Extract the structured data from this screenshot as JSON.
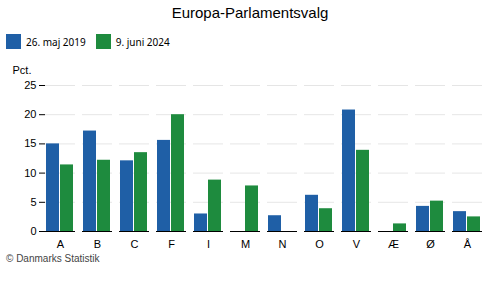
{
  "chart_data": {
    "type": "bar",
    "title": "Europa-Parlamentsvalg",
    "caption": "© Danmarks Statistik",
    "ylabel": "Pct.",
    "categories": [
      "A",
      "B",
      "C",
      "F",
      "I",
      "M",
      "N",
      "O",
      "V",
      "Æ",
      "Ø",
      "Å"
    ],
    "series": [
      {
        "name": "26. maj 2019",
        "color": "#1F5FA6",
        "values": [
          15.0,
          17.2,
          12.1,
          15.6,
          3.0,
          0.0,
          2.7,
          6.2,
          20.8,
          0.0,
          4.3,
          3.4
        ]
      },
      {
        "name": "9. juni 2024",
        "color": "#1E8B3E",
        "values": [
          11.4,
          12.2,
          13.5,
          20.0,
          8.8,
          7.8,
          0.0,
          3.9,
          13.9,
          1.3,
          5.2,
          2.5
        ]
      }
    ],
    "ylim": [
      0,
      25
    ],
    "yticks": [
      0,
      5,
      10,
      15,
      20,
      25
    ],
    "grid": true,
    "legend": "top"
  }
}
